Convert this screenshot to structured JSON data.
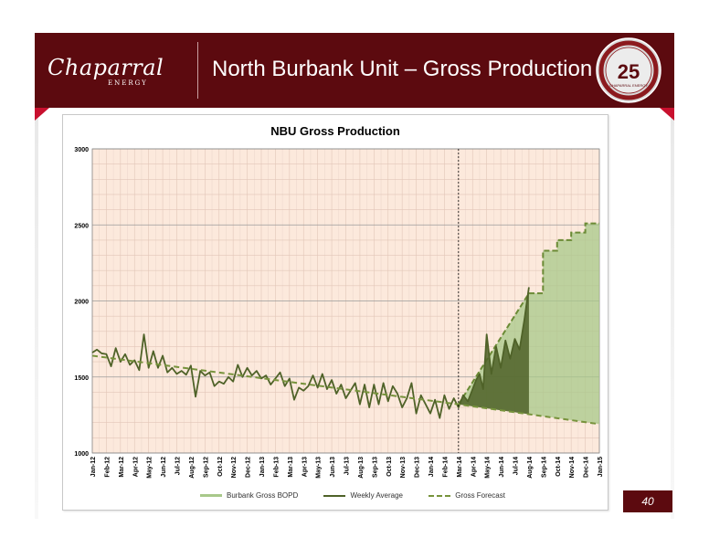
{
  "header": {
    "title": "North Burbank Unit – Gross Production",
    "logo_text": "Chaparral",
    "logo_subtext": "ENERGY",
    "seal_number": "25",
    "seal_text": "CHAPARRAL ENERGY",
    "bg_color": "#5c0a0f"
  },
  "footer": {
    "page_number": "40"
  },
  "chart_data": {
    "type": "line",
    "title": "NBU Gross Production",
    "xlabel": "",
    "ylabel": "",
    "ylim": [
      1000,
      3000
    ],
    "yticks": [
      1000,
      1500,
      2000,
      2500,
      3000
    ],
    "grid": true,
    "legend_position": "bottom",
    "categories": [
      "Jan-12",
      "Feb-12",
      "Mar-12",
      "Apr-12",
      "May-12",
      "Jun-12",
      "Jul-12",
      "Aug-12",
      "Sep-12",
      "Oct-12",
      "Nov-12",
      "Dec-12",
      "Jan-13",
      "Feb-13",
      "Mar-13",
      "Apr-13",
      "May-13",
      "Jun-13",
      "Jul-13",
      "Aug-13",
      "Sep-13",
      "Oct-13",
      "Nov-13",
      "Dec-13",
      "Jan-14",
      "Feb-14",
      "Mar-14",
      "Apr-14",
      "May-14",
      "Jun-14",
      "Jul-14",
      "Aug-14",
      "Sep-14",
      "Oct-14",
      "Nov-14",
      "Dec-14",
      "Jan-15"
    ],
    "forecast_start": "Mar-14",
    "series": [
      {
        "name": "Burbank Gross BOPD",
        "color": "#a8c88a",
        "style": "area",
        "points": [
          [
            "Mar-14",
            1320
          ],
          [
            "Aug-14",
            2050
          ],
          [
            "Sep-14",
            2050
          ],
          [
            "Sep-14",
            2330
          ],
          [
            "Oct-14",
            2330
          ],
          [
            "Oct-14",
            2400
          ],
          [
            "Nov-14",
            2400
          ],
          [
            "Nov-14",
            2450
          ],
          [
            "Dec-14",
            2450
          ],
          [
            "Dec-14",
            2510
          ],
          [
            "Jan-15",
            2510
          ]
        ]
      },
      {
        "name": "Weekly Average",
        "color": "#4f6228",
        "style": "solid",
        "points": [
          [
            "Jan-12",
            1660
          ],
          [
            "Jan-12",
            1680
          ],
          [
            "Jan-12",
            1655
          ],
          [
            "Feb-12",
            1650
          ],
          [
            "Feb-12",
            1570
          ],
          [
            "Feb-12",
            1690
          ],
          [
            "Mar-12",
            1600
          ],
          [
            "Mar-12",
            1650
          ],
          [
            "Mar-12",
            1580
          ],
          [
            "Apr-12",
            1610
          ],
          [
            "Apr-12",
            1545
          ],
          [
            "Apr-12",
            1780
          ],
          [
            "May-12",
            1560
          ],
          [
            "May-12",
            1670
          ],
          [
            "May-12",
            1560
          ],
          [
            "Jun-12",
            1640
          ],
          [
            "Jun-12",
            1530
          ],
          [
            "Jun-12",
            1560
          ],
          [
            "Jul-12",
            1520
          ],
          [
            "Jul-12",
            1540
          ],
          [
            "Jul-12",
            1515
          ],
          [
            "Aug-12",
            1575
          ],
          [
            "Aug-12",
            1370
          ],
          [
            "Aug-12",
            1540
          ],
          [
            "Sep-12",
            1510
          ],
          [
            "Sep-12",
            1530
          ],
          [
            "Sep-12",
            1440
          ],
          [
            "Oct-12",
            1470
          ],
          [
            "Oct-12",
            1455
          ],
          [
            "Oct-12",
            1500
          ],
          [
            "Nov-12",
            1470
          ],
          [
            "Nov-12",
            1580
          ],
          [
            "Nov-12",
            1500
          ],
          [
            "Dec-12",
            1560
          ],
          [
            "Dec-12",
            1510
          ],
          [
            "Dec-12",
            1540
          ],
          [
            "Jan-13",
            1490
          ],
          [
            "Jan-13",
            1510
          ],
          [
            "Jan-13",
            1450
          ],
          [
            "Feb-13",
            1490
          ],
          [
            "Feb-13",
            1530
          ],
          [
            "Feb-13",
            1440
          ],
          [
            "Mar-13",
            1490
          ],
          [
            "Mar-13",
            1350
          ],
          [
            "Mar-13",
            1430
          ],
          [
            "Apr-13",
            1410
          ],
          [
            "Apr-13",
            1440
          ],
          [
            "Apr-13",
            1510
          ],
          [
            "May-13",
            1430
          ],
          [
            "May-13",
            1520
          ],
          [
            "May-13",
            1420
          ],
          [
            "Jun-13",
            1480
          ],
          [
            "Jun-13",
            1390
          ],
          [
            "Jun-13",
            1450
          ],
          [
            "Jul-13",
            1360
          ],
          [
            "Jul-13",
            1410
          ],
          [
            "Jul-13",
            1460
          ],
          [
            "Aug-13",
            1320
          ],
          [
            "Aug-13",
            1450
          ],
          [
            "Aug-13",
            1300
          ],
          [
            "Sep-13",
            1450
          ],
          [
            "Sep-13",
            1320
          ],
          [
            "Sep-13",
            1460
          ],
          [
            "Oct-13",
            1340
          ],
          [
            "Oct-13",
            1440
          ],
          [
            "Oct-13",
            1390
          ],
          [
            "Nov-13",
            1300
          ],
          [
            "Nov-13",
            1360
          ],
          [
            "Nov-13",
            1460
          ],
          [
            "Dec-13",
            1260
          ],
          [
            "Dec-13",
            1380
          ],
          [
            "Dec-13",
            1320
          ],
          [
            "Jan-14",
            1260
          ],
          [
            "Jan-14",
            1350
          ],
          [
            "Jan-14",
            1230
          ],
          [
            "Feb-14",
            1380
          ],
          [
            "Feb-14",
            1290
          ],
          [
            "Feb-14",
            1360
          ],
          [
            "Mar-14",
            1300
          ],
          [
            "Mar-14",
            1380
          ],
          [
            "Mar-14",
            1340
          ],
          [
            "Apr-14",
            1420
          ],
          [
            "Apr-14",
            1480
          ],
          [
            "Apr-14",
            1520
          ],
          [
            "Apr-14",
            1420
          ],
          [
            "May-14",
            1780
          ],
          [
            "May-14",
            1520
          ],
          [
            "May-14",
            1700
          ],
          [
            "Jun-14",
            1560
          ],
          [
            "Jun-14",
            1740
          ],
          [
            "Jun-14",
            1620
          ],
          [
            "Jul-14",
            1750
          ],
          [
            "Jul-14",
            1680
          ],
          [
            "Jul-14",
            1870
          ],
          [
            "Aug-14",
            2090
          ]
        ]
      },
      {
        "name": "Gross Forecast",
        "color": "#77933c",
        "style": "dashed",
        "points": [
          [
            "Jan-12",
            1640
          ],
          [
            "Mar-14",
            1320
          ],
          [
            "Jan-15",
            1190
          ]
        ]
      }
    ]
  }
}
